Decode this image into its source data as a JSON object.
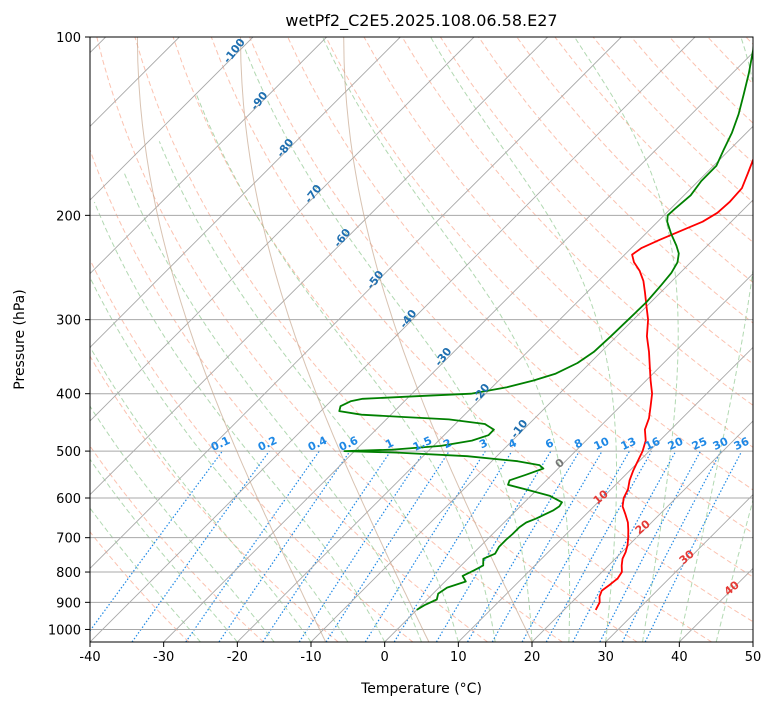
{
  "chart_data": {
    "type": "line",
    "title": "wetPf2_C2E5.2025.108.06.58.E27",
    "xlabel": "Temperature (°C)",
    "ylabel": "Pressure (hPa)",
    "xlim": [
      -40,
      50
    ],
    "ylim": [
      1050,
      100
    ],
    "y_scale": "log",
    "skew": "skew-T",
    "grid": true,
    "x_ticks": [
      "-40",
      "-30",
      "-20",
      "-10",
      "0",
      "10",
      "20",
      "30",
      "40",
      "50"
    ],
    "y_ticks": [
      "100",
      "200",
      "300",
      "400",
      "500",
      "600",
      "700",
      "800",
      "900",
      "1000"
    ],
    "series": [
      {
        "color": "#ff0000",
        "points": [
          [
            927,
            24.3
          ],
          [
            900,
            23.8
          ],
          [
            880,
            23.0
          ],
          [
            860,
            22.5
          ],
          [
            840,
            22.8
          ],
          [
            820,
            23.0
          ],
          [
            800,
            22.7
          ],
          [
            780,
            21.8
          ],
          [
            760,
            21.0
          ],
          [
            740,
            20.5
          ],
          [
            720,
            19.8
          ],
          [
            700,
            18.9
          ],
          [
            680,
            17.9
          ],
          [
            660,
            16.8
          ],
          [
            640,
            15.4
          ],
          [
            620,
            13.9
          ],
          [
            600,
            12.9
          ],
          [
            580,
            12.3
          ],
          [
            560,
            11.3
          ],
          [
            540,
            10.5
          ],
          [
            520,
            9.8
          ],
          [
            500,
            9.1
          ],
          [
            480,
            8.1
          ],
          [
            460,
            6.5
          ],
          [
            440,
            5.5
          ],
          [
            420,
            4.1
          ],
          [
            400,
            2.6
          ],
          [
            380,
            0.6
          ],
          [
            360,
            -1.4
          ],
          [
            340,
            -3.5
          ],
          [
            320,
            -5.9
          ],
          [
            300,
            -8.0
          ],
          [
            285,
            -10.0
          ],
          [
            270,
            -12.1
          ],
          [
            258,
            -13.9
          ],
          [
            248,
            -15.8
          ],
          [
            240,
            -17.7
          ],
          [
            233,
            -19.0
          ],
          [
            227,
            -18.6
          ],
          [
            220,
            -17.3
          ],
          [
            212,
            -15.5
          ],
          [
            205,
            -13.9
          ],
          [
            198,
            -13.1
          ],
          [
            190,
            -12.9
          ],
          [
            180,
            -13.1
          ],
          [
            170,
            -14.3
          ],
          [
            160,
            -15.6
          ],
          [
            150,
            -17.0
          ],
          [
            140,
            -18.4
          ],
          [
            130,
            -20.1
          ],
          [
            120,
            -22.5
          ],
          [
            110,
            -26.0
          ],
          [
            103,
            -29.4
          ],
          [
            100,
            -31.2
          ]
        ]
      },
      {
        "color": "#008000",
        "points": [
          [
            927,
            0.0
          ],
          [
            910,
            0.4
          ],
          [
            890,
            1.3
          ],
          [
            870,
            0.7
          ],
          [
            850,
            1.1
          ],
          [
            830,
            2.8
          ],
          [
            812,
            1.6
          ],
          [
            795,
            2.4
          ],
          [
            780,
            3.0
          ],
          [
            760,
            2.1
          ],
          [
            745,
            3.0
          ],
          [
            725,
            2.6
          ],
          [
            705,
            2.6
          ],
          [
            690,
            2.7
          ],
          [
            672,
            2.7
          ],
          [
            660,
            3.0
          ],
          [
            650,
            3.8
          ],
          [
            640,
            4.4
          ],
          [
            630,
            5.0
          ],
          [
            620,
            5.3
          ],
          [
            610,
            5.1
          ],
          [
            595,
            2.6
          ],
          [
            582,
            -1.0
          ],
          [
            570,
            -4.6
          ],
          [
            560,
            -5.0
          ],
          [
            548,
            -3.5
          ],
          [
            535,
            -2.0
          ],
          [
            528,
            -3.0
          ],
          [
            520,
            -6.5
          ],
          [
            510,
            -14.0
          ],
          [
            503,
            -24.0
          ],
          [
            500,
            -31.4
          ],
          [
            497,
            -25.0
          ],
          [
            490,
            -19.0
          ],
          [
            480,
            -15.5
          ],
          [
            470,
            -14.0
          ],
          [
            460,
            -14.0
          ],
          [
            450,
            -16.0
          ],
          [
            442,
            -21.5
          ],
          [
            438,
            -28.0
          ],
          [
            434,
            -34.0
          ],
          [
            428,
            -37.5
          ],
          [
            420,
            -38.0
          ],
          [
            412,
            -37.3
          ],
          [
            408,
            -36.0
          ],
          [
            404,
            -29.0
          ],
          [
            400,
            -22.0
          ],
          [
            390,
            -18.0
          ],
          [
            380,
            -15.3
          ],
          [
            370,
            -13.2
          ],
          [
            355,
            -11.7
          ],
          [
            340,
            -11.0
          ],
          [
            320,
            -10.8
          ],
          [
            300,
            -10.7
          ],
          [
            280,
            -10.6
          ],
          [
            262,
            -10.9
          ],
          [
            250,
            -11.2
          ],
          [
            240,
            -11.8
          ],
          [
            232,
            -12.8
          ],
          [
            225,
            -14.2
          ],
          [
            215,
            -16.5
          ],
          [
            205,
            -18.7
          ],
          [
            200,
            -19.5
          ],
          [
            195,
            -19.4
          ],
          [
            185,
            -19.1
          ],
          [
            175,
            -19.6
          ],
          [
            165,
            -19.6
          ],
          [
            155,
            -20.8
          ],
          [
            145,
            -22.0
          ],
          [
            135,
            -23.6
          ],
          [
            125,
            -25.6
          ],
          [
            115,
            -27.8
          ],
          [
            105,
            -30.4
          ],
          [
            100,
            -32.0
          ]
        ]
      }
    ],
    "dry_adiabat_labels": [
      "-100",
      "-90",
      "-80",
      "-70",
      "-60",
      "-50",
      "-40",
      "-30",
      "-20",
      "-10"
    ],
    "mixing_ratio_labels": [
      "0.1",
      "0.2",
      "0.4",
      "0.6",
      "1",
      "1.5",
      "2",
      "3",
      "4",
      "6",
      "8",
      "10",
      "13",
      "16",
      "20",
      "25",
      "30",
      "36"
    ],
    "moist_adiabat_labels": [
      "0",
      "10",
      "20",
      "30",
      "40"
    ]
  }
}
